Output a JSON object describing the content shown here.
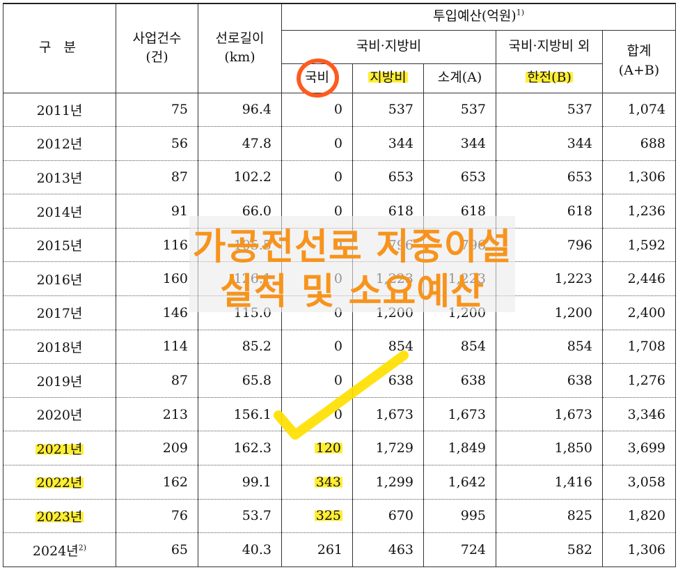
{
  "header": {
    "category": "구  분",
    "projects": "사업건수\n(건)",
    "length": "선로길이\n(km)",
    "budget": "투입예산(억원)",
    "budget_note": "1)",
    "group_national_local": "국비·지방비",
    "national": "국비",
    "local": "지방비",
    "subtotal": "소계(A)",
    "group_other": "국비·지방비 외",
    "kepco": "한전(B)",
    "total": "합계\n(A+B)"
  },
  "rows": [
    {
      "year": "2011년",
      "note": "",
      "projects": "75",
      "length": "96.4",
      "national": "0",
      "local": "537",
      "subtotal": "537",
      "kepco": "537",
      "total": "1,074"
    },
    {
      "year": "2012년",
      "note": "",
      "projects": "56",
      "length": "47.8",
      "national": "0",
      "local": "344",
      "subtotal": "344",
      "kepco": "344",
      "total": "688"
    },
    {
      "year": "2013년",
      "note": "",
      "projects": "87",
      "length": "102.2",
      "national": "0",
      "local": "653",
      "subtotal": "653",
      "kepco": "653",
      "total": "1,306"
    },
    {
      "year": "2014년",
      "note": "",
      "projects": "91",
      "length": "66.0",
      "national": "0",
      "local": "618",
      "subtotal": "618",
      "kepco": "618",
      "total": "1,236"
    },
    {
      "year": "2015년",
      "note": "",
      "projects": "116",
      "length": "105.5",
      "national": "0",
      "local": "796",
      "subtotal": "796",
      "kepco": "796",
      "total": "1,592"
    },
    {
      "year": "2016년",
      "note": "",
      "projects": "160",
      "length": "126.1",
      "national": "0",
      "local": "1,223",
      "subtotal": "1,223",
      "kepco": "1,223",
      "total": "2,446"
    },
    {
      "year": "2017년",
      "note": "",
      "projects": "146",
      "length": "115.0",
      "national": "0",
      "local": "1,200",
      "subtotal": "1,200",
      "kepco": "1,200",
      "total": "2,400"
    },
    {
      "year": "2018년",
      "note": "",
      "projects": "114",
      "length": "85.2",
      "national": "0",
      "local": "854",
      "subtotal": "854",
      "kepco": "854",
      "total": "1,708"
    },
    {
      "year": "2019년",
      "note": "",
      "projects": "87",
      "length": "65.8",
      "national": "0",
      "local": "638",
      "subtotal": "638",
      "kepco": "638",
      "total": "1,276"
    },
    {
      "year": "2020년",
      "note": "",
      "projects": "213",
      "length": "156.1",
      "national": "0",
      "local": "1,673",
      "subtotal": "1,673",
      "kepco": "1,673",
      "total": "3,346"
    },
    {
      "year": "2021년",
      "note": "",
      "projects": "209",
      "length": "162.3",
      "national": "120",
      "local": "1,729",
      "subtotal": "1,849",
      "kepco": "1,850",
      "total": "3,699"
    },
    {
      "year": "2022년",
      "note": "",
      "projects": "162",
      "length": "99.1",
      "national": "343",
      "local": "1,299",
      "subtotal": "1,642",
      "kepco": "1,416",
      "total": "3,058"
    },
    {
      "year": "2023년",
      "note": "",
      "projects": "76",
      "length": "53.7",
      "national": "325",
      "local": "670",
      "subtotal": "995",
      "kepco": "825",
      "total": "1,820"
    },
    {
      "year": "2024년",
      "note": "2)",
      "projects": "65",
      "length": "40.3",
      "national": "261",
      "local": "463",
      "subtotal": "724",
      "kepco": "582",
      "total": "1,306"
    }
  ],
  "highlight_years": [
    "2021년",
    "2022년",
    "2023년"
  ],
  "watermark": {
    "line1": "가공전선로 지중이설",
    "line2": "실적 및 소요예산"
  },
  "colors": {
    "highlight": "#ffee33",
    "circle": "#ff5a1f",
    "watermark_text": "#f7941d",
    "checkmark": "#ffe000"
  }
}
